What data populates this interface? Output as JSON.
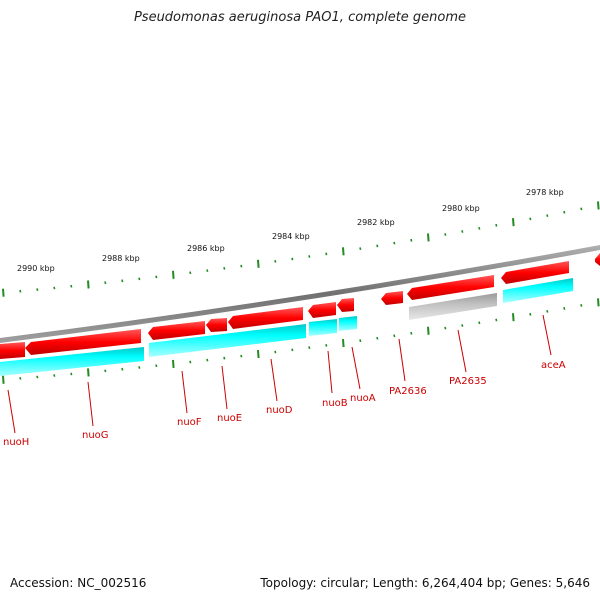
{
  "title": "Pseudomonas aeruginosa PAO1, complete genome",
  "footer": {
    "accession": "Accession: NC_002516",
    "topology": "Topology: circular; Length: 6,264,404 bp; Genes: 5,646"
  },
  "scale": {
    "unit": "kbp",
    "labels": [
      "2990 kbp",
      "2988 kbp",
      "2986 kbp",
      "2984 kbp",
      "2982 kbp",
      "2980 kbp",
      "2978 kbp"
    ]
  },
  "genes": [
    {
      "name": "nuoH",
      "strand": "reverse",
      "color": "#ff0000"
    },
    {
      "name": "nuoG",
      "strand": "reverse",
      "color": "#ff0000"
    },
    {
      "name": "nuoF",
      "strand": "reverse",
      "color": "#ff0000"
    },
    {
      "name": "nuoE",
      "strand": "reverse",
      "color": "#ff0000"
    },
    {
      "name": "nuoD",
      "strand": "reverse",
      "color": "#ff0000"
    },
    {
      "name": "nuoB",
      "strand": "reverse",
      "color": "#ff0000"
    },
    {
      "name": "nuoA",
      "strand": "reverse",
      "color": "#ff0000"
    },
    {
      "name": "PA2636",
      "strand": "reverse",
      "color": "#ff0000"
    },
    {
      "name": "PA2635",
      "strand": "reverse",
      "color": "#ff0000"
    },
    {
      "name": "aceA",
      "strand": "reverse",
      "color": "#ff0000"
    }
  ],
  "colors": {
    "backbone": "#808080",
    "cds": "#ff0000",
    "feature": "#00ffff",
    "pseudo": "#c0c0c0",
    "scale_ticks": "#228b22",
    "labels": "#cc0000"
  }
}
